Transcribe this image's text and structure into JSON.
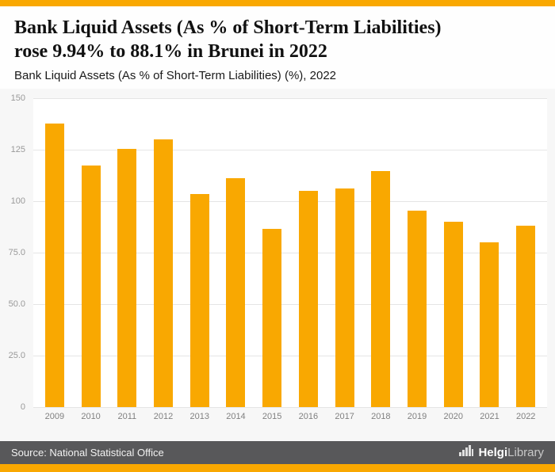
{
  "colors": {
    "accent": "#F9A801",
    "footer_bg": "#58585A",
    "chart_bg": "#F7F7F7",
    "plot_bg": "#FFFFFF",
    "gridline": "#E5E5E5"
  },
  "header": {
    "title_line1": "Bank Liquid Assets (As % of Short-Term Liabilities)",
    "title_line2": "rose 9.94% to 88.1% in Brunei in 2022",
    "subtitle": "Bank Liquid Assets (As % of Short-Term Liabilities) (%), 2022"
  },
  "chart_data": {
    "type": "bar",
    "title": "Bank Liquid Assets (As % of Short-Term Liabilities) (%), 2022",
    "categories": [
      "2009",
      "2010",
      "2011",
      "2012",
      "2013",
      "2014",
      "2015",
      "2016",
      "2017",
      "2018",
      "2019",
      "2020",
      "2021",
      "2022"
    ],
    "values": [
      137.8,
      117.2,
      125.3,
      130.0,
      103.6,
      111.2,
      86.6,
      105.0,
      106.2,
      114.8,
      95.3,
      90.0,
      80.1,
      88.1
    ],
    "xlabel": "",
    "ylabel": "",
    "ylim": [
      0,
      150
    ],
    "yticks": [
      {
        "label": "150",
        "value": 150
      },
      {
        "label": "125",
        "value": 125
      },
      {
        "label": "100",
        "value": 100
      },
      {
        "label": "75.0",
        "value": 75
      },
      {
        "label": "50.0",
        "value": 50
      },
      {
        "label": "25.0",
        "value": 25
      },
      {
        "label": "0",
        "value": 0
      }
    ],
    "bar_color": "#F9A801",
    "grid": true,
    "legend": "none"
  },
  "footer": {
    "source": "Source: National Statistical Office",
    "brand_bold": "Helgi",
    "brand_light": "Library",
    "logo_icon": "bar-chart-icon"
  }
}
